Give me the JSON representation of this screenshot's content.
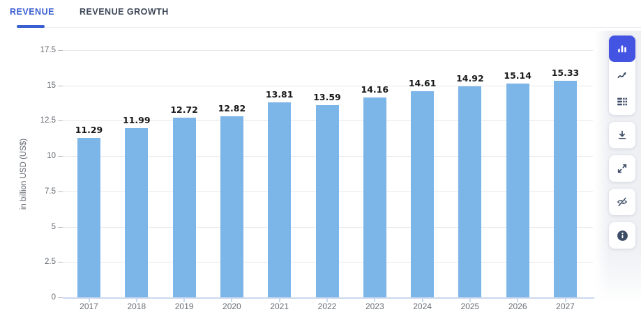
{
  "tabs": [
    {
      "label": "REVENUE",
      "active": true
    },
    {
      "label": "REVENUE GROWTH",
      "active": false
    }
  ],
  "chart_data": {
    "type": "bar",
    "categories": [
      "2017",
      "2018",
      "2019",
      "2020",
      "2021",
      "2022",
      "2023",
      "2024",
      "2025",
      "2026",
      "2027"
    ],
    "values": [
      11.29,
      11.99,
      12.72,
      12.82,
      13.81,
      13.59,
      14.16,
      14.61,
      14.92,
      15.14,
      15.33
    ],
    "value_labels": [
      "11.29",
      "11.99",
      "12.72",
      "12.82",
      "13.81",
      "13.59",
      "14.16",
      "14.61",
      "14.92",
      "15.14",
      "15.33"
    ],
    "xlabel": "",
    "ylabel": "in billion USD (US$)",
    "ylim": [
      0,
      17.5
    ],
    "yticks": [
      0,
      2.5,
      5,
      7.5,
      10,
      12.5,
      15,
      17.5
    ],
    "ytick_labels": [
      "0",
      "2.5",
      "5",
      "7.5",
      "10",
      "12.5",
      "15",
      "17.5"
    ],
    "grid": true,
    "legend": false,
    "bar_color": "#7CB5E8"
  },
  "toolbar": {
    "buttons": [
      {
        "icon": "bar-chart-icon",
        "active": true
      },
      {
        "icon": "line-chart-icon",
        "active": false
      },
      {
        "icon": "table-icon",
        "active": false
      },
      {
        "icon": "download-icon",
        "active": false
      },
      {
        "icon": "fullscreen-icon",
        "active": false
      },
      {
        "icon": "hide-icon",
        "active": false
      },
      {
        "icon": "info-icon",
        "active": false
      }
    ]
  },
  "colors": {
    "accent_blue": "#4353E2",
    "tab_active": "#3A5FD1",
    "tab_inactive": "#3F4859",
    "bar": "#7CB5E8",
    "icon_slate": "#3D4C66"
  }
}
